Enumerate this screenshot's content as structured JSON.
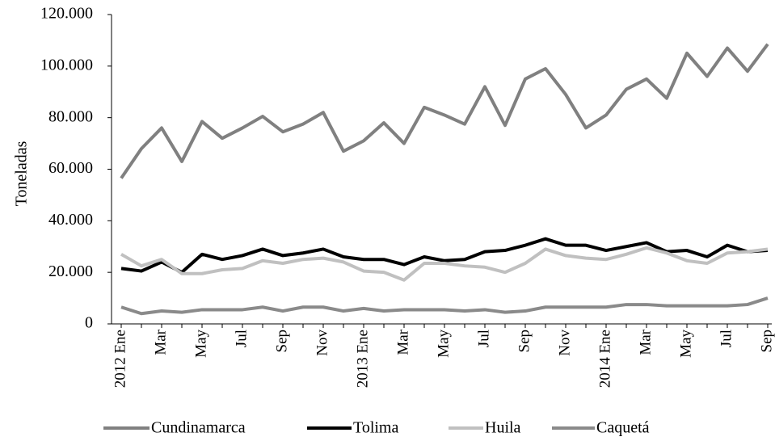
{
  "chart_data": {
    "type": "line",
    "y_label": "Toneladas",
    "categories": [
      "2012 Ene",
      null,
      "Mar",
      null,
      "May",
      null,
      "Jul",
      null,
      "Sep",
      null,
      "Nov",
      null,
      "2013 Ene",
      null,
      "Mar",
      null,
      "May",
      null,
      "Jul",
      null,
      "Sep",
      null,
      "Nov",
      null,
      "2014 Ene",
      null,
      "Mar",
      null,
      "May",
      null,
      "Jul",
      null,
      "Sep"
    ],
    "series": [
      {
        "name": "Cundinamarca",
        "color": "#808080",
        "values": [
          56500,
          68000,
          76000,
          63000,
          78500,
          72000,
          76000,
          80500,
          74500,
          77500,
          82000,
          67000,
          71000,
          78000,
          70000,
          84000,
          81000,
          77500,
          92000,
          77000,
          95000,
          99000,
          89000,
          76000,
          81000,
          91000,
          95000,
          87500,
          105000,
          96000,
          107000,
          98000,
          108500
        ]
      },
      {
        "name": "Tolima",
        "color": "#000000",
        "values": [
          21500,
          20500,
          24000,
          20000,
          27000,
          25000,
          26500,
          29000,
          26500,
          27500,
          29000,
          26000,
          25000,
          25000,
          23000,
          26000,
          24500,
          25000,
          28000,
          28500,
          30500,
          33000,
          30500,
          30500,
          28500,
          30000,
          31500,
          28000,
          28500,
          26000,
          30500,
          28000,
          28500
        ]
      },
      {
        "name": "Huila",
        "color": "#c0c0c0",
        "values": [
          27000,
          22500,
          25000,
          19500,
          19500,
          21000,
          21500,
          24500,
          23500,
          25000,
          25500,
          24000,
          20500,
          20000,
          17000,
          23500,
          23500,
          22500,
          22000,
          20000,
          23500,
          29000,
          26500,
          25500,
          25000,
          27000,
          29500,
          27500,
          24500,
          23500,
          27500,
          28000,
          29000
        ]
      },
      {
        "name": "Caquetá",
        "color": "#8a8a8a",
        "values": [
          6500,
          4000,
          5000,
          4500,
          5500,
          5500,
          5500,
          6500,
          5000,
          6500,
          6500,
          5000,
          6000,
          5000,
          5500,
          5500,
          5500,
          5000,
          5500,
          4500,
          5000,
          6500,
          6500,
          6500,
          6500,
          7500,
          7500,
          7000,
          7000,
          7000,
          7000,
          7500,
          10000
        ]
      }
    ],
    "ylim": [
      0,
      120000
    ],
    "yticks": [
      0,
      {
        "value": 20000,
        "label": "20.000"
      },
      {
        "value": 40000,
        "label": "40.000"
      },
      {
        "value": 60000,
        "label": "60.000"
      },
      {
        "value": 80000,
        "label": "80.000"
      },
      {
        "value": 100000,
        "label": "100.000"
      },
      {
        "value": 120000,
        "label": "120.000"
      }
    ],
    "grid": false,
    "legend": "bottom"
  }
}
